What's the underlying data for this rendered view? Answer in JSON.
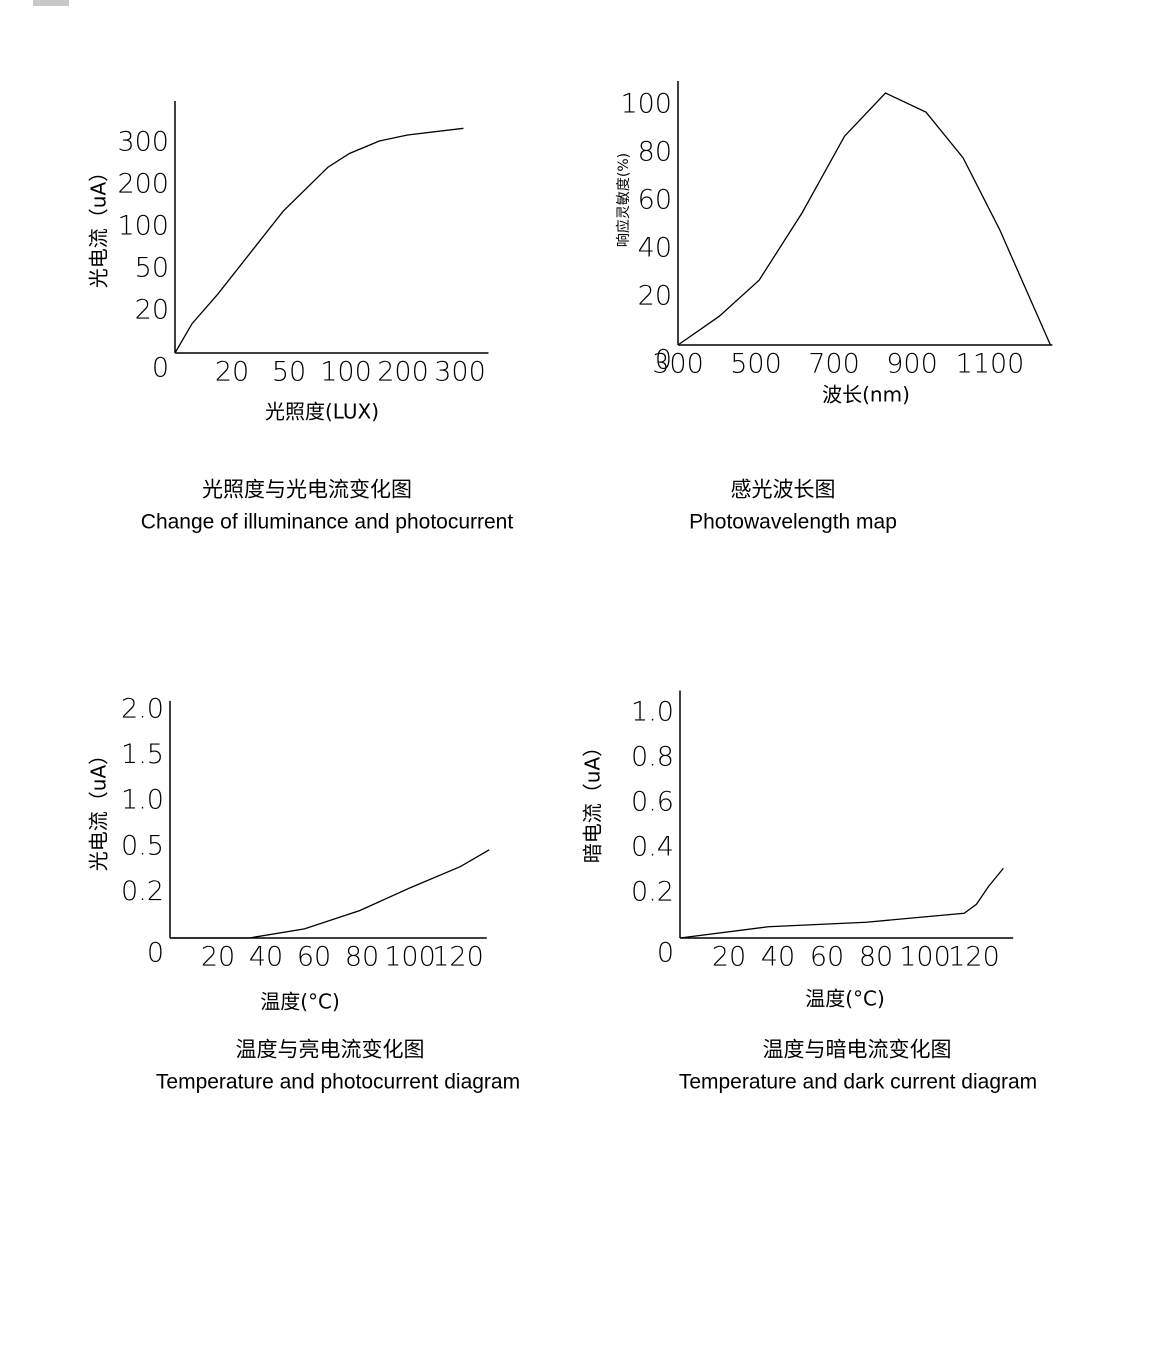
{
  "chart_data": [
    {
      "type": "line",
      "title": "光照度与光电流变化图",
      "subtitle": "Change of illuminance and photocurrent",
      "x_label": "光照度(LUX)",
      "y_label": "光电流（uA）",
      "xlim": [
        0,
        350
      ],
      "xticks": [
        20,
        50,
        100,
        200,
        300
      ],
      "ylim": [
        0,
        400
      ],
      "yticks": [
        0,
        20,
        50,
        100,
        200,
        300
      ],
      "series": [
        {
          "color": "#000000",
          "x": [
            0,
            6,
            15,
            47,
            84,
            106,
            159,
            208,
            306
          ],
          "values": [
            0,
            14,
            32,
            138,
            242,
            275,
            305,
            319,
            335
          ]
        }
      ]
    },
    {
      "type": "line",
      "title": "感光波长图",
      "subtitle": "Photowavelength map",
      "x_label": "波长(nm)",
      "y_label": "响应灵敏度(%)",
      "xlim": [
        300,
        1260
      ],
      "xticks": [
        300,
        500,
        700,
        900,
        1100
      ],
      "ylim": [
        0,
        110
      ],
      "yticks": [
        0,
        20,
        40,
        60,
        80,
        100
      ],
      "series": [
        {
          "color": "#000000",
          "x": [
            300,
            406,
            508,
            618,
            727,
            832,
            936,
            1031,
            1125,
            1255
          ],
          "values": [
            0,
            12,
            27,
            55,
            87,
            105,
            97,
            78,
            48,
            0
          ]
        }
      ]
    },
    {
      "type": "line",
      "title": "温度与亮电流变化图",
      "subtitle": "Temperature and photocurrent diagram",
      "x_label": "温度(°C)",
      "y_label": "光电流（uA）",
      "xlim": [
        0,
        132
      ],
      "xticks": [
        20,
        40,
        60,
        80,
        100,
        120
      ],
      "ylim": [
        0,
        2.1
      ],
      "yticks": [
        0,
        0.2,
        0.5,
        {
          "value": 1,
          "label": "1.0"
        },
        1.5,
        {
          "value": 2,
          "label": "2.0"
        }
      ],
      "series": [
        {
          "color": "#000000",
          "x": [
            0,
            33,
            56,
            79,
            100,
            121,
            133
          ],
          "values": [
            0,
            0,
            0.04,
            0.12,
            0.23,
            0.37,
            0.48
          ]
        }
      ]
    },
    {
      "type": "line",
      "title": "温度与暗电流变化图",
      "subtitle": "Temperature and dark current diagram",
      "x_label": "温度(°C)",
      "y_label": "暗电流（uA）",
      "xlim": [
        0,
        136
      ],
      "xticks": [
        20,
        40,
        60,
        80,
        100,
        120
      ],
      "ylim": [
        0,
        1.1
      ],
      "yticks": [
        0,
        0.2,
        0.4,
        0.6,
        0.8,
        {
          "value": 1,
          "label": "1.0"
        }
      ],
      "series": [
        {
          "color": "#000000",
          "x": [
            0,
            36,
            76,
            116,
            121,
            126,
            132
          ],
          "values": [
            0,
            0.05,
            0.07,
            0.11,
            0.15,
            0.23,
            0.31
          ]
        }
      ]
    }
  ]
}
